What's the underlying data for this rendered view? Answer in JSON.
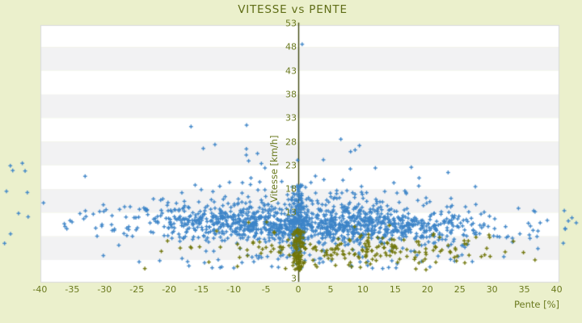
{
  "page": {
    "background_color": "#ebf0cc"
  },
  "chart_data": {
    "type": "scatter",
    "title": "VITESSE vs PENTE",
    "xlabel": "Pente [%]",
    "ylabel": "Vitesse [km/h]",
    "x_ticks": [
      -40,
      -35,
      -30,
      -25,
      -20,
      -15,
      -10,
      -5,
      0,
      5,
      10,
      15,
      20,
      25,
      30,
      35,
      40
    ],
    "y_ticks": [
      53,
      48,
      43,
      38,
      33,
      28,
      23,
      18,
      13,
      8,
      3
    ],
    "xlim": [
      -40,
      40
    ],
    "ylim": [
      3,
      53
    ],
    "legend": "none",
    "grid": "horizontal alternating 5 km/h bands, vertical axis line at pente = 0",
    "band_colors": [
      "#ffffff",
      "#f2f2f3"
    ],
    "plot_border_color": "#d8dadb",
    "zero_axis_color": "#40490f",
    "seed": 1337,
    "series": [
      {
        "name": "vitesse-points-bleus",
        "color": "#3d85c8",
        "marker": "plus",
        "clusters": [
          {
            "n": 1250,
            "x": {
              "normal": [
                2,
                14.5
              ],
              "clip": [
                -40.8,
                40.8
              ]
            },
            "y": {
              "normal": [
                10.4,
                1.9
              ],
              "clip": [
                4.8,
                16.5
              ]
            },
            "yslope": -0.025
          },
          {
            "n": 150,
            "x": {
              "normal": [
                1,
                13
              ],
              "clip": [
                -38,
                40
              ]
            },
            "y": {
              "normal": [
                14.5,
                2.2
              ],
              "clip": [
                12,
                22
              ]
            }
          },
          {
            "n": 22,
            "x": {
              "normal": [
                -1,
                11
              ],
              "clip": [
                -34,
                30
              ]
            },
            "y": {
              "normal": [
                22,
                3.5
              ],
              "clip": [
                17,
                33
              ]
            }
          },
          {
            "n": 120,
            "x": {
              "normal": [
                0,
                0.45
              ],
              "clip": [
                -1.5,
                1.5
              ]
            },
            "y": {
              "uniform": [
                4.5,
                19
              ]
            }
          },
          {
            "n": 70,
            "x": {
              "normal": [
                4,
                16
              ],
              "clip": [
                -36,
                40
              ]
            },
            "y": {
              "uniform": [
                1.2,
                5
              ]
            }
          },
          {
            "n": 10,
            "x": {
              "uniform": [
                -45.5,
                -41
              ]
            },
            "y": {
              "uniform": [
                6,
                26
              ]
            }
          },
          {
            "n": 7,
            "x": {
              "uniform": [
                40.6,
                43.5
              ]
            },
            "y": {
              "uniform": [
                6.5,
                13.5
              ]
            }
          }
        ],
        "outliers": [
          [
            0.6,
            48.6
          ],
          [
            -8,
            31.5
          ],
          [
            -16.6,
            31.2
          ],
          [
            -12.9,
            27.4
          ],
          [
            23.2,
            21.5
          ],
          [
            8.1,
            25.9
          ],
          [
            -33,
            20.7
          ],
          [
            17.5,
            22.6
          ]
        ]
      },
      {
        "name": "vitesse-points-olive",
        "color": "#71760a",
        "marker": "plus",
        "clusters": [
          {
            "n": 200,
            "x": {
              "normal": [
                8,
                13.5
              ],
              "clip": [
                -31,
                37
              ]
            },
            "y": {
              "normal": [
                4.8,
                1.6
              ],
              "clip": [
                0.3,
                8
              ]
            }
          },
          {
            "n": 85,
            "x": {
              "normal": [
                0,
                0.4
              ],
              "clip": [
                -1.2,
                1.2
              ]
            },
            "y": {
              "uniform": [
                0.8,
                9.5
              ]
            }
          },
          {
            "n": 14,
            "x": {
              "normal": [
                6,
                12
              ],
              "clip": [
                -25,
                32
              ]
            },
            "y": {
              "uniform": [
                8,
                11.5
              ]
            }
          }
        ],
        "outliers": []
      }
    ]
  }
}
